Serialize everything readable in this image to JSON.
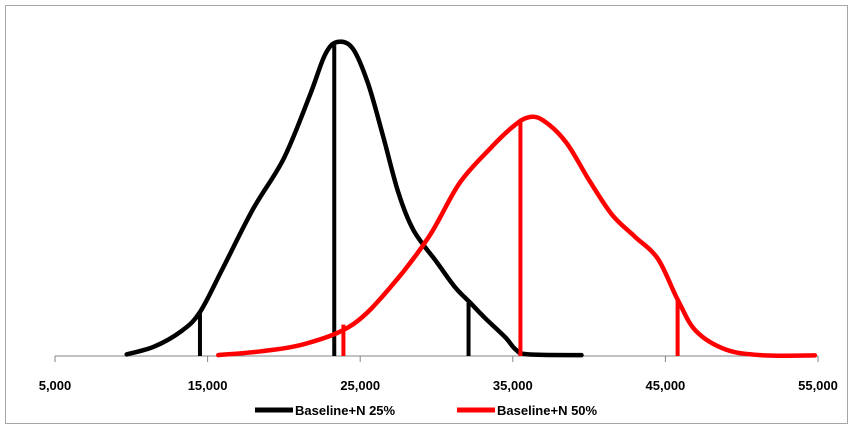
{
  "chart_data": {
    "type": "line",
    "title": "",
    "xlabel": "",
    "ylabel": "",
    "xlim": [
      5000,
      55000
    ],
    "ylim": [
      0,
      1
    ],
    "grid": false,
    "legend_position": "bottom",
    "x_ticks": [
      5000,
      15000,
      25000,
      35000,
      45000,
      55000
    ],
    "x_tick_labels": [
      "5,000",
      "15,000",
      "25,000",
      "35,000",
      "45,000",
      "55,000"
    ],
    "series": [
      {
        "name": "Baseline+N 25%",
        "color": "#000000",
        "points": [
          [
            9700,
            0.005
          ],
          [
            11500,
            0.03
          ],
          [
            13300,
            0.08
          ],
          [
            14500,
            0.14
          ],
          [
            16000,
            0.28
          ],
          [
            18000,
            0.47
          ],
          [
            20000,
            0.63
          ],
          [
            21700,
            0.83
          ],
          [
            22700,
            0.96
          ],
          [
            23500,
            1.0
          ],
          [
            24500,
            0.98
          ],
          [
            25500,
            0.87
          ],
          [
            26500,
            0.7
          ],
          [
            27500,
            0.52
          ],
          [
            28500,
            0.4
          ],
          [
            30000,
            0.3
          ],
          [
            31200,
            0.22
          ],
          [
            32200,
            0.17
          ],
          [
            33200,
            0.12
          ],
          [
            34500,
            0.06
          ],
          [
            35200,
            0.02
          ],
          [
            36000,
            0.005
          ],
          [
            39500,
            0.003
          ]
        ],
        "markers": [
          {
            "x": 14500,
            "y": 0.14
          },
          {
            "x": 23300,
            "y": 0.99
          },
          {
            "x": 32100,
            "y": 0.17
          }
        ]
      },
      {
        "name": "Baseline+N 50%",
        "color": "#ff0000",
        "points": [
          [
            15700,
            0.003
          ],
          [
            18500,
            0.015
          ],
          [
            21500,
            0.04
          ],
          [
            24500,
            0.1
          ],
          [
            27000,
            0.22
          ],
          [
            29500,
            0.38
          ],
          [
            31500,
            0.55
          ],
          [
            33500,
            0.66
          ],
          [
            35000,
            0.73
          ],
          [
            36000,
            0.76
          ],
          [
            37000,
            0.75
          ],
          [
            38500,
            0.68
          ],
          [
            40000,
            0.56
          ],
          [
            41500,
            0.45
          ],
          [
            43000,
            0.38
          ],
          [
            44500,
            0.31
          ],
          [
            45800,
            0.18
          ],
          [
            47000,
            0.08
          ],
          [
            49000,
            0.02
          ],
          [
            51500,
            0.002
          ],
          [
            54800,
            0.002
          ]
        ],
        "markers": [
          {
            "x": 23900,
            "y": 0.1
          },
          {
            "x": 35500,
            "y": 0.75
          },
          {
            "x": 45800,
            "y": 0.18
          }
        ]
      }
    ]
  }
}
